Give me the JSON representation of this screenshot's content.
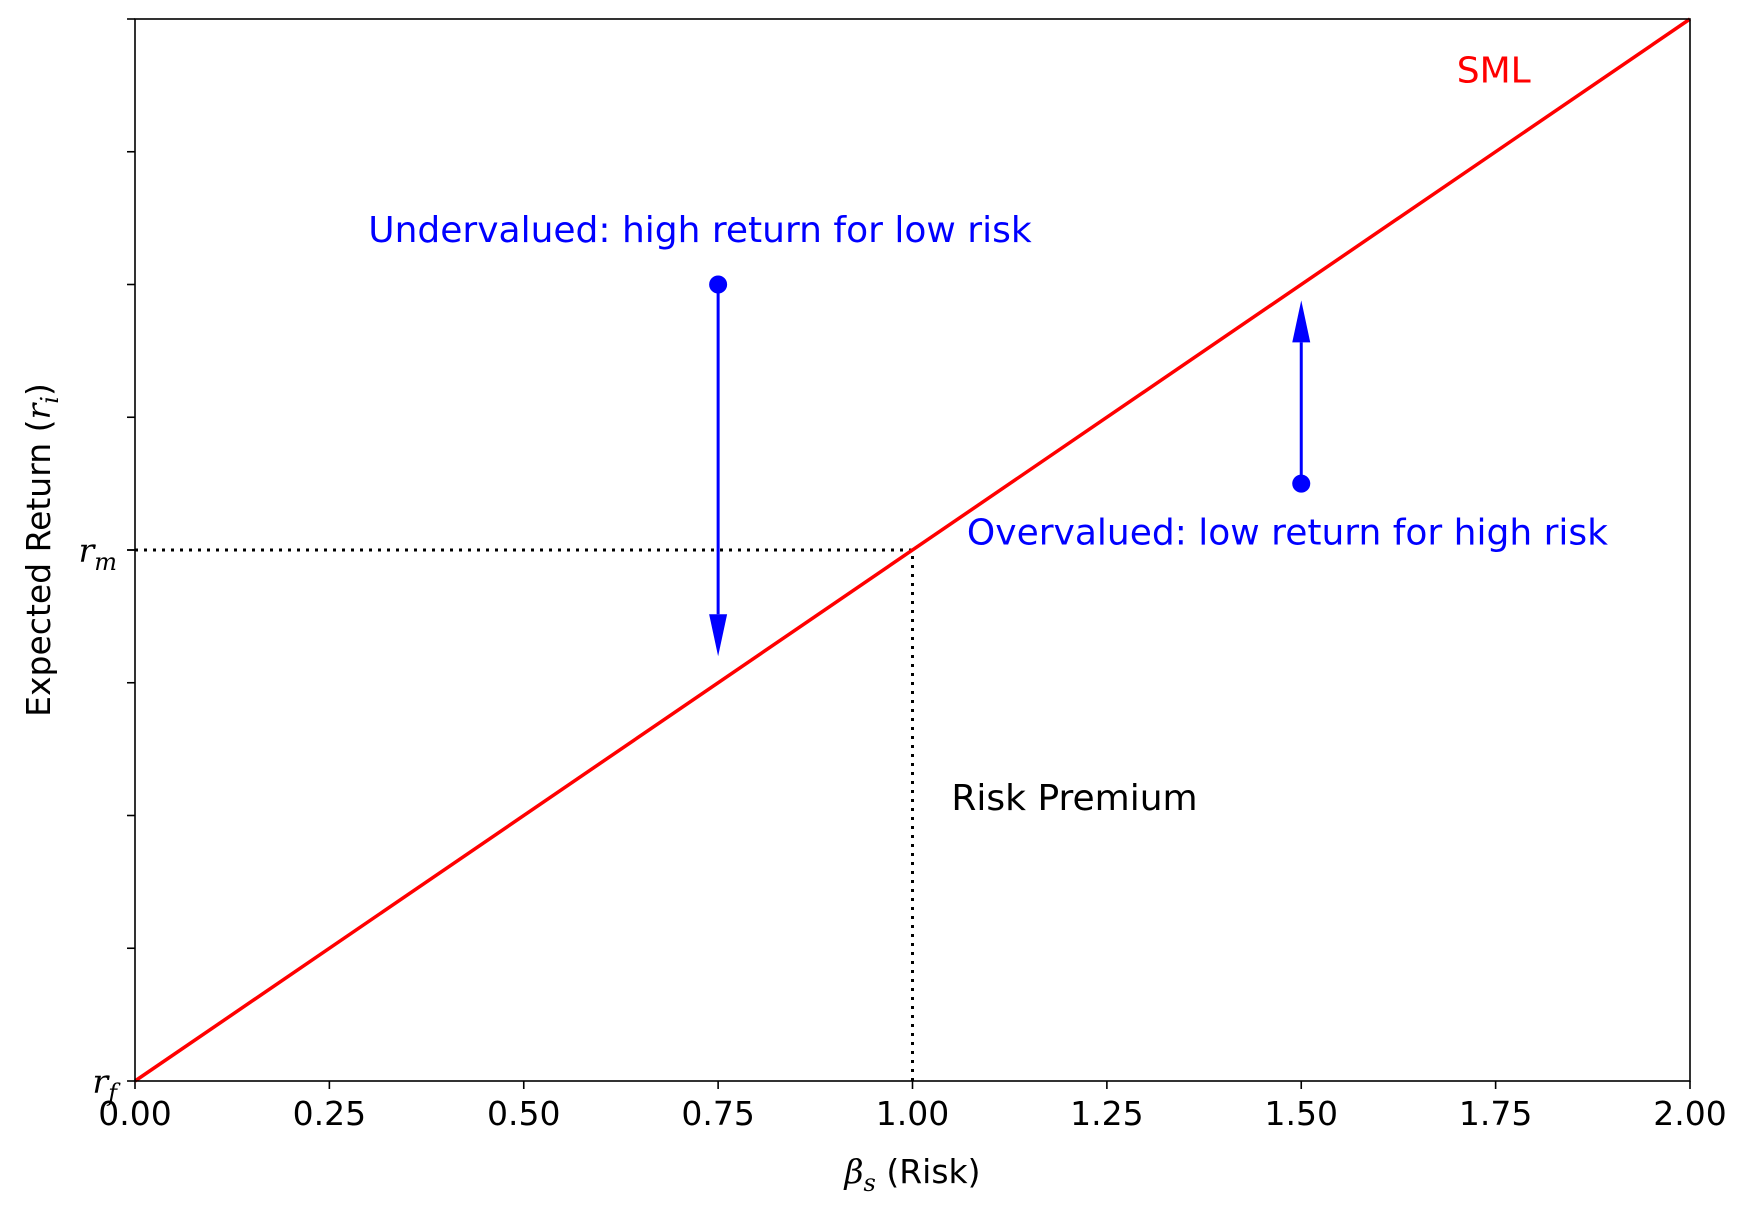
{
  "chart_data": {
    "type": "line",
    "xlabel": {
      "symbol": "β",
      "subscript": "s",
      "text": " (Risk)"
    },
    "ylabel": {
      "text": "Expected Return (",
      "symbol": "r",
      "subscript": "i",
      "close": ")"
    },
    "xlim": [
      0,
      2
    ],
    "ylim": [
      0,
      2
    ],
    "x_ticks": [
      {
        "value": 0,
        "label": "0.00"
      },
      {
        "value": 0.25,
        "label": "0.25"
      },
      {
        "value": 0.5,
        "label": "0.50"
      },
      {
        "value": 0.75,
        "label": "0.75"
      },
      {
        "value": 1,
        "label": "1.00"
      },
      {
        "value": 1.25,
        "label": "1.25"
      },
      {
        "value": 1.5,
        "label": "1.50"
      },
      {
        "value": 1.75,
        "label": "1.75"
      },
      {
        "value": 2,
        "label": "2.00"
      }
    ],
    "y_minor_ticks": [
      0.25,
      0.5,
      0.75,
      1.0,
      1.25,
      1.5,
      1.75,
      2.0
    ],
    "y_labeled_ticks": [
      {
        "value": 0,
        "symbol": "r",
        "subscript": "f"
      },
      {
        "value": 1,
        "symbol": "r",
        "subscript": "m"
      }
    ],
    "grid": false,
    "series": [
      {
        "name": "SML",
        "color": "#ff0000",
        "x": [
          0,
          2
        ],
        "y": [
          0,
          2
        ]
      }
    ],
    "reference_lines": [
      {
        "x": [
          0,
          1
        ],
        "y": [
          1,
          1
        ],
        "style": "dotted",
        "color": "#000000"
      },
      {
        "x": [
          1,
          1
        ],
        "y": [
          0,
          1
        ],
        "style": "dotted",
        "color": "#000000"
      }
    ],
    "points": [
      {
        "x": 0.75,
        "y": 1.5,
        "color": "#0000ff"
      },
      {
        "x": 1.5,
        "y": 1.125,
        "color": "#0000ff"
      }
    ],
    "arrows": [
      {
        "from": [
          0.75,
          1.5
        ],
        "to": [
          0.75,
          0.8
        ],
        "color": "#0000ff"
      },
      {
        "from": [
          1.5,
          1.125
        ],
        "to": [
          1.5,
          1.47
        ],
        "color": "#0000ff"
      }
    ],
    "annotations": [
      {
        "text": "SML",
        "x": 1.7,
        "y": 1.88,
        "color": "#ff0000"
      },
      {
        "text": "Undervalued: high return for low risk",
        "x": 0.3,
        "y": 1.58,
        "color": "#0000ff"
      },
      {
        "text": "Overvalued: low return for high risk",
        "x": 1.07,
        "y": 1.01,
        "color": "#0000ff"
      },
      {
        "text": "Risk Premium",
        "x": 1.05,
        "y": 0.51,
        "color": "#000000"
      }
    ]
  }
}
